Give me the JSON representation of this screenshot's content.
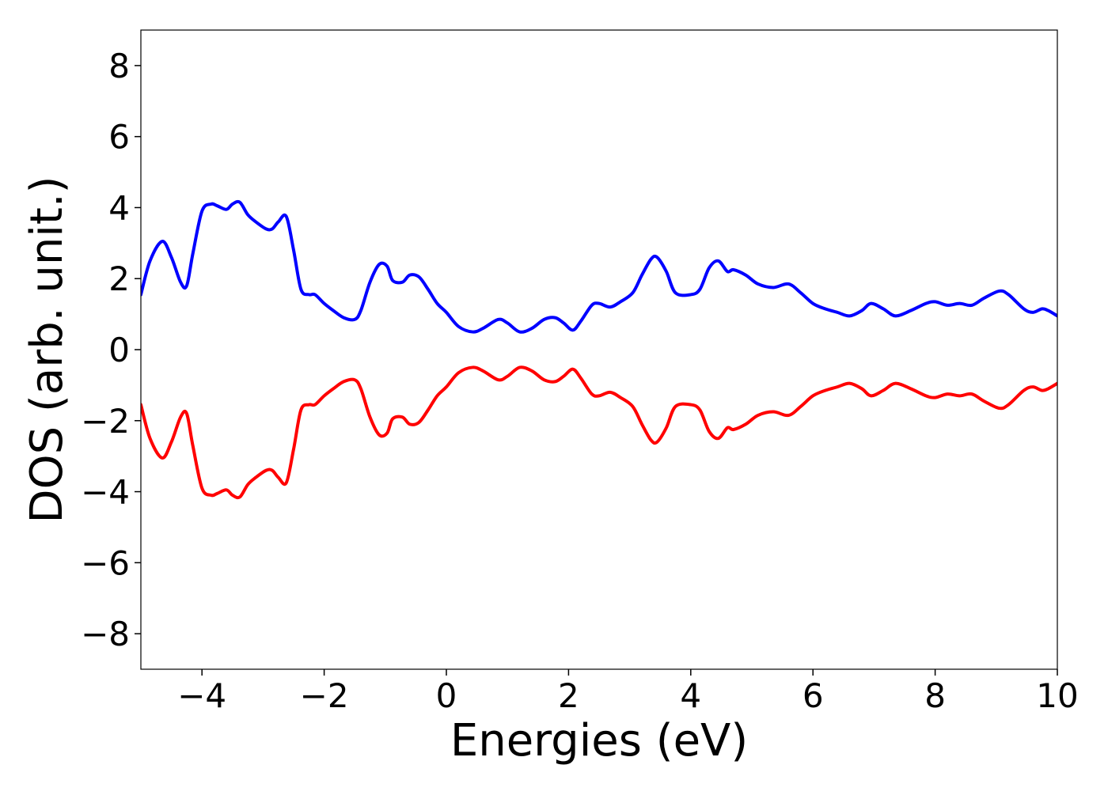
{
  "chart_data": {
    "type": "line",
    "title": "",
    "xlabel": "Energies (eV)",
    "ylabel": "DOS (arb. unit.)",
    "xlim": [
      -5,
      10
    ],
    "ylim": [
      -9,
      9
    ],
    "xticks": [
      -4,
      -2,
      0,
      2,
      4,
      6,
      8,
      10
    ],
    "yticks": [
      -8,
      -6,
      -4,
      -2,
      0,
      2,
      4,
      6,
      8
    ],
    "xtick_labels": [
      "−4",
      "−2",
      "0",
      "2",
      "4",
      "6",
      "8",
      "10"
    ],
    "ytick_labels": [
      "−8",
      "−6",
      "−4",
      "−2",
      "0",
      "2",
      "4",
      "6",
      "8"
    ],
    "grid": false,
    "legend": "none",
    "series": [
      {
        "color": "#0000ff",
        "x": [
          -5.0,
          -4.85,
          -4.65,
          -4.5,
          -4.35,
          -4.25,
          -4.15,
          -4.0,
          -3.85,
          -3.75,
          -3.6,
          -3.5,
          -3.38,
          -3.25,
          -3.12,
          -2.95,
          -2.85,
          -2.75,
          -2.62,
          -2.5,
          -2.38,
          -2.25,
          -2.15,
          -2.0,
          -1.85,
          -1.68,
          -1.5,
          -1.4,
          -1.25,
          -1.1,
          -0.97,
          -0.88,
          -0.72,
          -0.6,
          -0.45,
          -0.3,
          -0.15,
          0.0,
          0.2,
          0.43,
          0.6,
          0.85,
          1.0,
          1.2,
          1.4,
          1.6,
          1.78,
          1.92,
          2.07,
          2.2,
          2.38,
          2.5,
          2.68,
          2.85,
          3.05,
          3.2,
          3.35,
          3.45,
          3.6,
          3.75,
          4.0,
          4.15,
          4.3,
          4.45,
          4.6,
          4.7,
          4.9,
          5.1,
          5.35,
          5.6,
          5.8,
          6.0,
          6.2,
          6.4,
          6.6,
          6.8,
          6.95,
          7.15,
          7.35,
          7.6,
          7.85,
          8.0,
          8.2,
          8.4,
          8.6,
          8.8,
          9.05,
          9.2,
          9.45,
          9.6,
          9.75,
          9.85,
          10.0
        ],
        "y": [
          1.55,
          2.5,
          3.05,
          2.6,
          1.9,
          1.8,
          2.7,
          3.9,
          4.1,
          4.05,
          3.95,
          4.1,
          4.15,
          3.8,
          3.6,
          3.4,
          3.4,
          3.6,
          3.75,
          2.8,
          1.7,
          1.55,
          1.55,
          1.3,
          1.1,
          0.9,
          0.85,
          1.1,
          1.9,
          2.4,
          2.35,
          1.95,
          1.9,
          2.1,
          2.05,
          1.7,
          1.3,
          1.05,
          0.65,
          0.5,
          0.6,
          0.85,
          0.75,
          0.5,
          0.6,
          0.85,
          0.9,
          0.75,
          0.55,
          0.8,
          1.25,
          1.3,
          1.2,
          1.35,
          1.6,
          2.1,
          2.55,
          2.6,
          2.2,
          1.6,
          1.55,
          1.7,
          2.3,
          2.5,
          2.2,
          2.25,
          2.1,
          1.85,
          1.75,
          1.85,
          1.6,
          1.3,
          1.15,
          1.05,
          0.95,
          1.1,
          1.3,
          1.15,
          0.95,
          1.1,
          1.3,
          1.35,
          1.25,
          1.3,
          1.25,
          1.45,
          1.65,
          1.55,
          1.15,
          1.05,
          1.15,
          1.1,
          0.95
        ]
      },
      {
        "color": "#ff0000",
        "x": [
          -5.0,
          -4.85,
          -4.65,
          -4.5,
          -4.35,
          -4.25,
          -4.15,
          -4.0,
          -3.85,
          -3.75,
          -3.6,
          -3.5,
          -3.38,
          -3.25,
          -3.12,
          -2.95,
          -2.85,
          -2.75,
          -2.62,
          -2.5,
          -2.38,
          -2.25,
          -2.15,
          -2.0,
          -1.85,
          -1.68,
          -1.5,
          -1.4,
          -1.25,
          -1.1,
          -0.97,
          -0.88,
          -0.72,
          -0.6,
          -0.45,
          -0.3,
          -0.15,
          0.0,
          0.2,
          0.43,
          0.6,
          0.85,
          1.0,
          1.2,
          1.4,
          1.6,
          1.78,
          1.92,
          2.07,
          2.2,
          2.38,
          2.5,
          2.68,
          2.85,
          3.05,
          3.2,
          3.35,
          3.45,
          3.6,
          3.75,
          4.0,
          4.15,
          4.3,
          4.45,
          4.6,
          4.7,
          4.9,
          5.1,
          5.35,
          5.6,
          5.8,
          6.0,
          6.2,
          6.4,
          6.6,
          6.8,
          6.95,
          7.15,
          7.35,
          7.6,
          7.85,
          8.0,
          8.2,
          8.4,
          8.6,
          8.8,
          9.05,
          9.2,
          9.45,
          9.6,
          9.75,
          9.85,
          10.0
        ],
        "y": [
          -1.55,
          -2.5,
          -3.05,
          -2.6,
          -1.9,
          -1.8,
          -2.7,
          -3.9,
          -4.1,
          -4.05,
          -3.95,
          -4.1,
          -4.15,
          -3.8,
          -3.6,
          -3.4,
          -3.4,
          -3.6,
          -3.75,
          -2.8,
          -1.7,
          -1.55,
          -1.55,
          -1.3,
          -1.1,
          -0.9,
          -0.85,
          -1.1,
          -1.9,
          -2.4,
          -2.35,
          -1.95,
          -1.9,
          -2.1,
          -2.05,
          -1.7,
          -1.3,
          -1.05,
          -0.65,
          -0.5,
          -0.6,
          -0.85,
          -0.75,
          -0.5,
          -0.6,
          -0.85,
          -0.9,
          -0.75,
          -0.55,
          -0.8,
          -1.25,
          -1.3,
          -1.2,
          -1.35,
          -1.6,
          -2.1,
          -2.55,
          -2.6,
          -2.2,
          -1.6,
          -1.55,
          -1.7,
          -2.3,
          -2.5,
          -2.2,
          -2.25,
          -2.1,
          -1.85,
          -1.75,
          -1.85,
          -1.6,
          -1.3,
          -1.15,
          -1.05,
          -0.95,
          -1.1,
          -1.3,
          -1.15,
          -0.95,
          -1.1,
          -1.3,
          -1.35,
          -1.25,
          -1.3,
          -1.25,
          -1.45,
          -1.65,
          -1.55,
          -1.15,
          -1.05,
          -1.15,
          -1.1,
          -0.95
        ]
      }
    ]
  }
}
